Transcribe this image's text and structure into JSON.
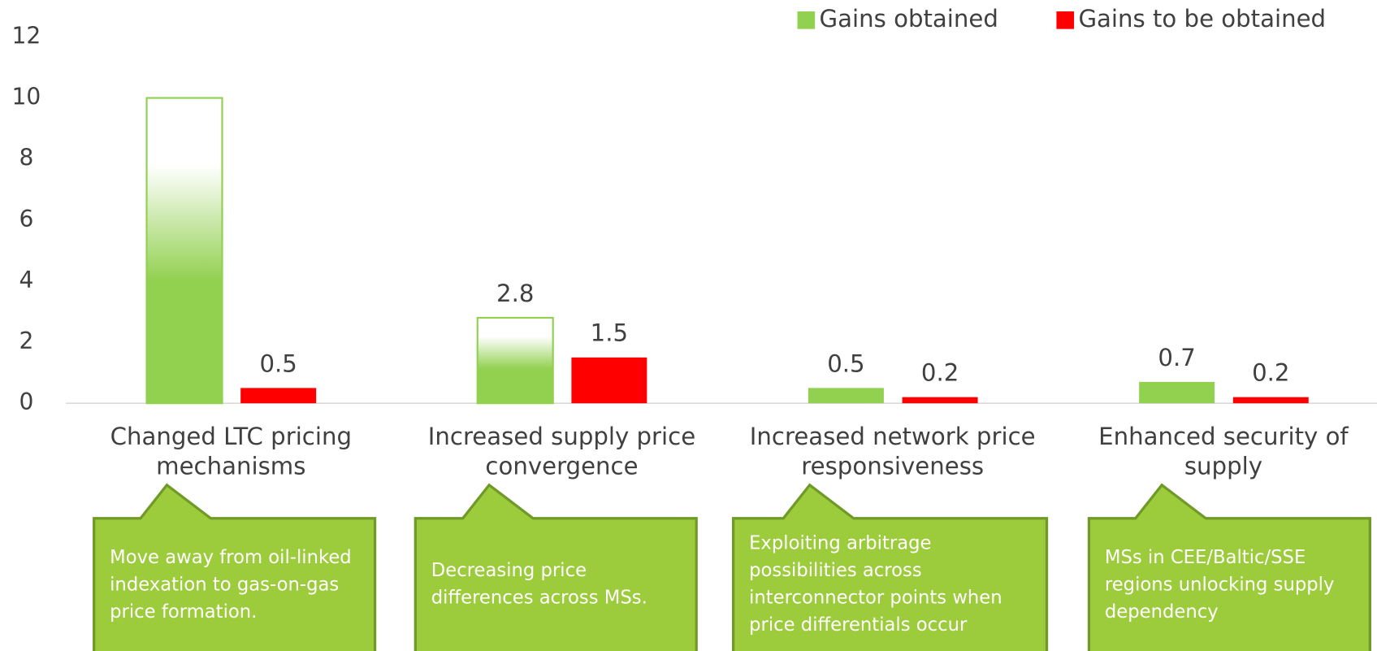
{
  "chart_data": {
    "type": "bar",
    "categories": [
      "Changed LTC pricing mechanisms",
      "Increased supply price convergence",
      "Increased network price responsiveness",
      "Enhanced security of supply"
    ],
    "series": [
      {
        "name": "Gains obtained",
        "color": "#92d050",
        "values": [
          10,
          2.8,
          0.5,
          0.7
        ],
        "value_labels": [
          null,
          "2.8",
          "0.5",
          "0.7"
        ],
        "gradient": [
          true,
          true,
          false,
          false
        ]
      },
      {
        "name": "Gains to be obtained",
        "color": "#ff0000",
        "values": [
          0.5,
          1.5,
          0.2,
          0.2
        ]
      }
    ],
    "ylim": [
      0,
      12
    ],
    "yticks": [
      0,
      2,
      4,
      6,
      8,
      10,
      12
    ],
    "grid": false,
    "legend": "top-right",
    "notes": [
      "Move away from oil-linked indexation to gas-on-gas price formation.",
      "Decreasing price differences across MSs.",
      "Exploiting arbitrage possibilities across interconnector points when price differentials occur",
      "MSs in CEE/Baltic/SSE regions unlocking supply dependency"
    ]
  }
}
